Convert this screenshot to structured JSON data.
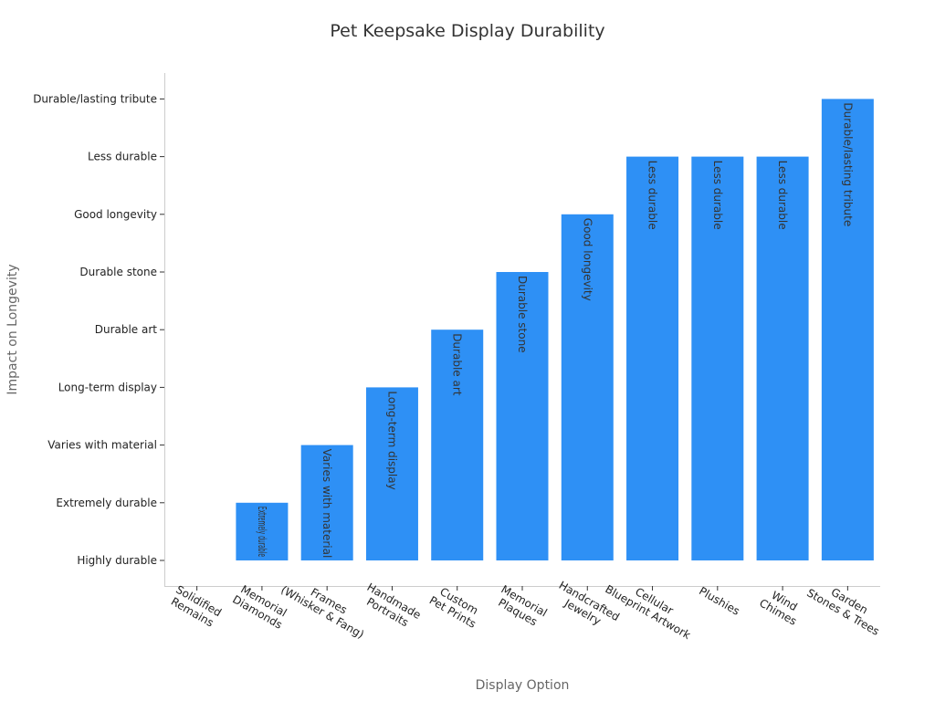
{
  "chart_data": {
    "type": "bar",
    "title": "Pet Keepsake Display Durability",
    "xlabel": "Display Option",
    "ylabel": "Impact on Longevity",
    "categories": [
      "Solidified\nRemains",
      "Memorial\nDiamonds",
      "Frames\n(Whisker & Fang)",
      "Handmade\nPortraits",
      "Custom\nPet Prints",
      "Memorial\nPlaques",
      "Handcrafted\nJewelry",
      "Cellular\nBlueprint Artwork",
      "Plushies",
      "Wind\nChimes",
      "Garden\nStones & Trees"
    ],
    "y_categories": [
      "Highly durable",
      "Extremely durable",
      "Varies with material",
      "Long-term display",
      "Durable art",
      "Durable stone",
      "Good longevity",
      "Less durable",
      "Durable/lasting tribute"
    ],
    "values": [
      "Highly durable",
      "Extremely durable",
      "Varies with material",
      "Long-term display",
      "Durable art",
      "Durable stone",
      "Good longevity",
      "Less durable",
      "Less durable",
      "Less durable",
      "Durable/lasting tribute"
    ],
    "bar_color": "#2e90f5",
    "grid": false
  }
}
